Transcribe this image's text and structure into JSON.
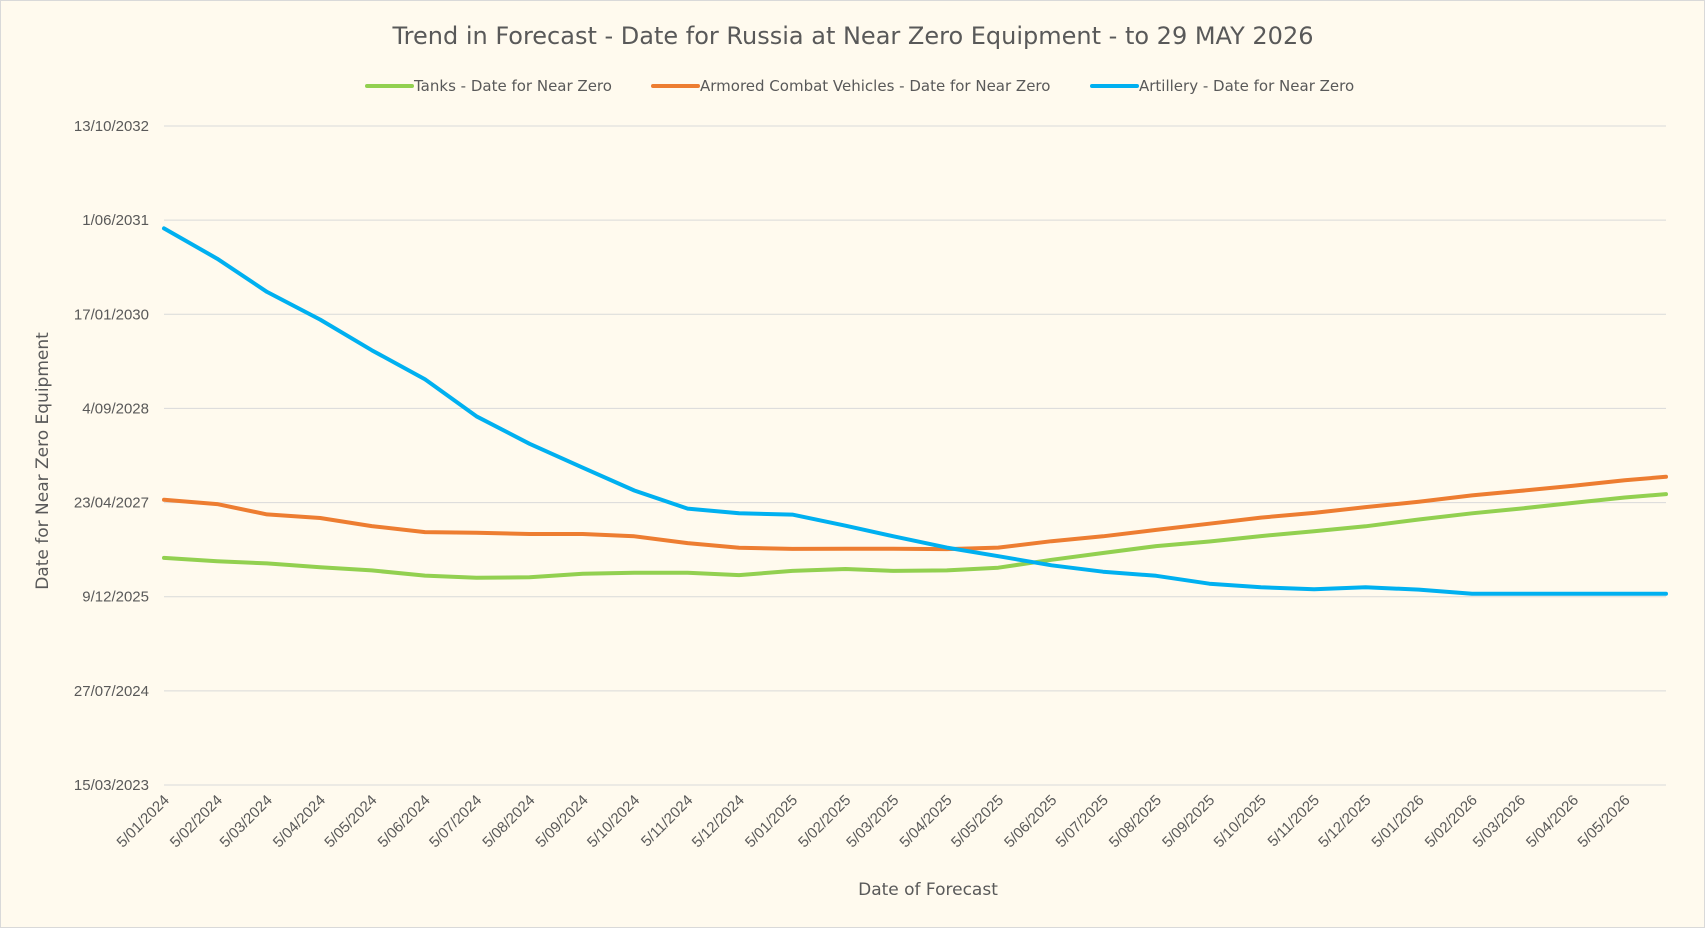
{
  "chart_data": {
    "type": "line",
    "title": "Trend in Forecast - Date for Russia at Near Zero Equipment - to 29 MAY 2026",
    "xlabel": "Date of Forecast",
    "ylabel": "Date for Near Zero Equipment",
    "legend_position": "top",
    "grid": "horizontal",
    "x_range": [
      "2024-01-05",
      "2026-05-29"
    ],
    "y_range": [
      "2023-03-15",
      "2032-10-13"
    ],
    "x_ticks": [
      "2024-01-05",
      "2024-02-05",
      "2024-03-05",
      "2024-04-05",
      "2024-05-05",
      "2024-06-05",
      "2024-07-05",
      "2024-08-05",
      "2024-09-05",
      "2024-10-05",
      "2024-11-05",
      "2024-12-05",
      "2025-01-05",
      "2025-02-05",
      "2025-03-05",
      "2025-04-05",
      "2025-05-05",
      "2025-06-05",
      "2025-07-05",
      "2025-08-05",
      "2025-09-05",
      "2025-10-05",
      "2025-11-05",
      "2025-12-05",
      "2026-01-05",
      "2026-02-05",
      "2026-03-05",
      "2026-04-05",
      "2026-05-05"
    ],
    "x_tick_labels": [
      "5/01/2024",
      "5/02/2024",
      "5/03/2024",
      "5/04/2024",
      "5/05/2024",
      "5/06/2024",
      "5/07/2024",
      "5/08/2024",
      "5/09/2024",
      "5/10/2024",
      "5/11/2024",
      "5/12/2024",
      "5/01/2025",
      "5/02/2025",
      "5/03/2025",
      "5/04/2025",
      "5/05/2025",
      "5/06/2025",
      "5/07/2025",
      "5/08/2025",
      "5/09/2025",
      "5/10/2025",
      "5/11/2025",
      "5/12/2025",
      "5/01/2026",
      "5/02/2026",
      "5/03/2026",
      "5/04/2026",
      "5/05/2026"
    ],
    "y_ticks": [
      "2023-03-15",
      "2024-07-27",
      "2025-12-09",
      "2027-04-23",
      "2028-09-04",
      "2030-01-17",
      "2031-06-01",
      "2032-10-13"
    ],
    "y_tick_labels": [
      "15/03/2023",
      "27/07/2024",
      "9/12/2025",
      "23/04/2027",
      "4/09/2028",
      "17/01/2030",
      "1/06/2031",
      "13/10/2032"
    ],
    "series": [
      {
        "name": "Tanks - Date for Near Zero",
        "color": "#92d050",
        "x": [
          "2024-01-05",
          "2024-02-05",
          "2024-03-05",
          "2024-04-05",
          "2024-05-05",
          "2024-06-05",
          "2024-07-05",
          "2024-08-05",
          "2024-09-05",
          "2024-10-05",
          "2024-11-05",
          "2024-12-05",
          "2025-01-05",
          "2025-02-05",
          "2025-03-05",
          "2025-04-05",
          "2025-05-05",
          "2025-06-05",
          "2025-07-05",
          "2025-08-05",
          "2025-09-05",
          "2025-10-05",
          "2025-11-05",
          "2025-12-05",
          "2026-01-05",
          "2026-02-05",
          "2026-03-05",
          "2026-04-05",
          "2026-05-05",
          "2026-05-29"
        ],
        "y": [
          "2026-07-03",
          "2026-06-15",
          "2026-06-04",
          "2026-05-15",
          "2026-04-28",
          "2026-03-31",
          "2026-03-20",
          "2026-03-22",
          "2026-04-10",
          "2026-04-15",
          "2026-04-15",
          "2026-04-03",
          "2026-04-25",
          "2026-05-05",
          "2026-04-25",
          "2026-04-28",
          "2026-05-12",
          "2026-06-23",
          "2026-07-29",
          "2026-09-04",
          "2026-09-28",
          "2026-10-27",
          "2026-11-22",
          "2026-12-18",
          "2027-01-23",
          "2027-02-25",
          "2027-03-22",
          "2027-04-21",
          "2027-05-20",
          "2027-06-07"
        ]
      },
      {
        "name": "Armored Combat Vehicles - Date for Near Zero",
        "color": "#ed7d31",
        "x": [
          "2024-01-05",
          "2024-02-05",
          "2024-03-05",
          "2024-04-05",
          "2024-05-05",
          "2024-06-05",
          "2024-07-05",
          "2024-08-05",
          "2024-09-05",
          "2024-10-05",
          "2024-11-05",
          "2024-12-05",
          "2025-01-05",
          "2025-02-05",
          "2025-03-05",
          "2025-04-05",
          "2025-05-05",
          "2025-06-05",
          "2025-07-05",
          "2025-08-05",
          "2025-09-05",
          "2025-10-05",
          "2025-11-05",
          "2025-12-05",
          "2026-01-05",
          "2026-02-05",
          "2026-03-05",
          "2026-04-05",
          "2026-05-05",
          "2026-05-29"
        ],
        "y": [
          "2027-05-08",
          "2027-04-15",
          "2027-02-19",
          "2027-01-31",
          "2026-12-19",
          "2026-11-17",
          "2026-11-14",
          "2026-11-07",
          "2026-11-07",
          "2026-10-26",
          "2026-09-20",
          "2026-08-26",
          "2026-08-20",
          "2026-08-21",
          "2026-08-21",
          "2026-08-19",
          "2026-08-27",
          "2026-09-30",
          "2026-10-26",
          "2026-11-29",
          "2027-01-01",
          "2027-02-02",
          "2027-02-27",
          "2027-03-30",
          "2027-04-27",
          "2027-05-31",
          "2027-06-24",
          "2027-07-21",
          "2027-08-20",
          "2027-09-07"
        ]
      },
      {
        "name": "Artillery - Date for Near Zero",
        "color": "#00b0f0",
        "x": [
          "2024-01-05",
          "2024-02-05",
          "2024-03-05",
          "2024-04-05",
          "2024-05-05",
          "2024-06-05",
          "2024-07-05",
          "2024-08-05",
          "2024-09-05",
          "2024-10-05",
          "2024-11-05",
          "2024-12-05",
          "2025-01-05",
          "2025-02-05",
          "2025-03-05",
          "2025-04-05",
          "2025-05-05",
          "2025-06-05",
          "2025-07-05",
          "2025-08-05",
          "2025-09-05",
          "2025-10-05",
          "2025-11-05",
          "2025-12-05",
          "2026-01-05",
          "2026-02-05",
          "2026-03-05",
          "2026-04-05",
          "2026-05-05",
          "2026-05-29"
        ],
        "y": [
          "2031-04-18",
          "2030-11-08",
          "2030-05-16",
          "2029-12-20",
          "2029-07-10",
          "2029-02-06",
          "2028-07-24",
          "2028-02-29",
          "2027-10-25",
          "2027-06-26",
          "2027-03-22",
          "2027-02-25",
          "2027-02-18",
          "2026-12-21",
          "2026-10-26",
          "2026-08-27",
          "2026-07-12",
          "2026-05-25",
          "2026-04-21",
          "2026-03-30",
          "2026-02-16",
          "2026-01-28",
          "2026-01-18",
          "2026-01-28",
          "2026-01-16",
          "2025-12-25",
          "2025-12-25",
          "2025-12-25",
          "2025-12-25",
          "2025-12-25"
        ]
      }
    ]
  }
}
